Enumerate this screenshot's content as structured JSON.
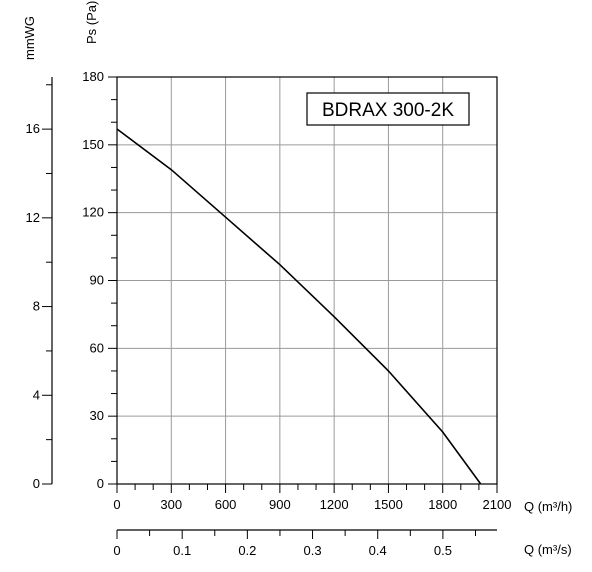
{
  "chart_data": {
    "type": "line",
    "badge": "BDRAX 300-2K",
    "primary_x_axis": {
      "label": "Q (m³/h)",
      "range": [
        0,
        2100
      ],
      "ticks": [
        "0",
        "300",
        "600",
        "900",
        "1200",
        "1500",
        "1800",
        "2100"
      ]
    },
    "secondary_x_axis": {
      "label": "Q (m³/s)",
      "range": [
        0,
        0.583
      ],
      "ticks": [
        "0",
        "0.1",
        "0.2",
        "0.3",
        "0.4",
        "0.5"
      ],
      "tick_values": [
        0,
        0.1,
        0.2,
        0.3,
        0.4,
        0.5
      ]
    },
    "primary_y_axis": {
      "label": "Ps (Pa)",
      "range": [
        0,
        180
      ],
      "ticks": [
        "0",
        "30",
        "60",
        "90",
        "120",
        "150",
        "180"
      ]
    },
    "secondary_y_axis": {
      "label": "mmWG",
      "range": [
        0,
        18.35
      ],
      "ticks": [
        "0",
        "4",
        "8",
        "12",
        "16"
      ],
      "tick_values": [
        0,
        4,
        8,
        12,
        16
      ]
    },
    "grid": true,
    "series": [
      {
        "x": [
          0,
          300,
          600,
          900,
          1200,
          1500,
          1800,
          2010
        ],
        "y": [
          157,
          139,
          118,
          97,
          74,
          50,
          23,
          0
        ]
      }
    ]
  }
}
